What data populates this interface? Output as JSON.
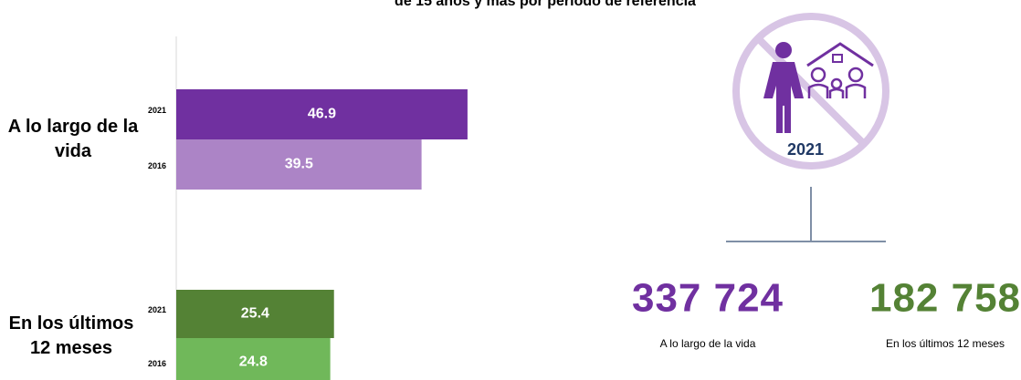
{
  "chart_data": {
    "type": "bar",
    "title": "de 15 años y más por periodo de referencia",
    "categories": [
      "A lo largo de la vida",
      "En los últimos 12 meses"
    ],
    "series": [
      {
        "name": "2021",
        "colors": [
          "#7030a0",
          "#548235"
        ],
        "values": [
          46.9,
          25.4
        ]
      },
      {
        "name": "2016",
        "colors": [
          "#ac84c6",
          "#70b85a"
        ],
        "values": [
          39.5,
          24.8
        ]
      }
    ]
  },
  "infographic": {
    "year": "2021",
    "totals": [
      {
        "label": "337 724",
        "caption": "A lo largo de la vida",
        "color": "#7030a0"
      },
      {
        "label": "182 758",
        "caption": "En los últimos 12 meses",
        "color": "#548235"
      }
    ]
  }
}
